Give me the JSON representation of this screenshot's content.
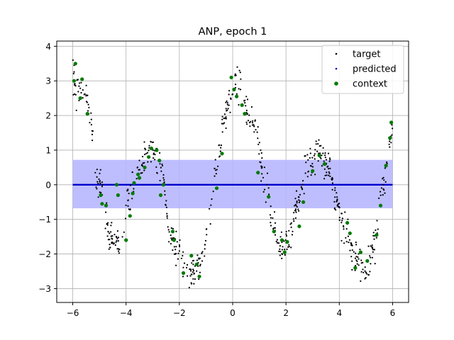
{
  "chart_data": {
    "type": "scatter",
    "title": "ANP, epoch 1",
    "xlabel": "",
    "ylabel": "",
    "xlim": [
      -6.6,
      6.6
    ],
    "ylim": [
      -3.4,
      4.15
    ],
    "xticks": [
      -6,
      -4,
      -2,
      0,
      2,
      4,
      6
    ],
    "xtick_labels": [
      "−6",
      "−4",
      "−2",
      "0",
      "2",
      "4",
      "6"
    ],
    "yticks": [
      -3,
      -2,
      -1,
      0,
      1,
      2,
      3,
      4
    ],
    "ytick_labels": [
      "−3",
      "−2",
      "−1",
      "0",
      "1",
      "2",
      "3",
      "4"
    ],
    "grid": true,
    "legend_position": "top-right",
    "legend": [
      "target",
      "predicted",
      "context"
    ],
    "colors": {
      "target": "#000000",
      "predicted": "#0000cc",
      "context": "#007a00",
      "band": "#b3b3ff",
      "grid": "#b0b0b0"
    },
    "predicted": {
      "mean": 0.0,
      "band": [
        -0.68,
        0.72
      ],
      "x": [
        -6,
        6
      ]
    },
    "target_curve": {
      "x": [
        -6.0,
        -5.5,
        -5.0,
        -4.6,
        -4.2,
        -3.9,
        -3.5,
        -3.0,
        -2.7,
        -2.3,
        -1.9,
        -1.6,
        -1.2,
        -0.9,
        -0.6,
        -0.3,
        0.0,
        0.35,
        0.6,
        0.9,
        1.2,
        1.5,
        1.8,
        2.1,
        2.4,
        2.8,
        3.2,
        3.6,
        3.9,
        4.2,
        4.6,
        5.0,
        5.3,
        5.6,
        6.0
      ],
      "y": [
        3.0,
        2.5,
        0.0,
        -1.6,
        -1.7,
        -0.4,
        0.5,
        1.0,
        0.4,
        -1.6,
        -2.1,
        -2.6,
        -2.3,
        -1.2,
        0.5,
        2.0,
        2.8,
        2.9,
        2.0,
        1.5,
        0.2,
        -1.0,
        -1.8,
        -1.6,
        -0.6,
        0.5,
        0.9,
        0.6,
        -0.5,
        -1.4,
        -2.0,
        -2.6,
        -1.8,
        0.0,
        1.5
      ],
      "count": 700,
      "noise": 0.22
    },
    "context_points": {
      "x": [
        -5.95,
        -5.9,
        -5.72,
        -5.65,
        -5.45,
        -4.95,
        -4.9,
        -4.75,
        -4.35,
        -4.3,
        -4.0,
        -3.85,
        -3.75,
        -3.7,
        -3.55,
        -3.5,
        -3.3,
        -3.15,
        -3.05,
        -2.85,
        -2.75,
        -2.7,
        -2.6,
        -2.25,
        -2.2,
        -1.85,
        -1.55,
        -1.35,
        -1.25,
        -0.6,
        -0.4,
        -0.05,
        0.05,
        0.15,
        0.35,
        0.45,
        0.95,
        1.35,
        1.55,
        1.85,
        1.95,
        2.05,
        2.5,
        2.65,
        3.0,
        3.25,
        3.45,
        4.3,
        4.4,
        4.6,
        4.8,
        5.05,
        5.4,
        5.55,
        5.75,
        5.9,
        5.95
      ],
      "y": [
        3.0,
        3.5,
        2.5,
        3.05,
        2.05,
        -0.3,
        -0.55,
        -0.6,
        0.0,
        -0.3,
        -1.6,
        -0.9,
        -0.25,
        0.05,
        0.3,
        0.2,
        0.5,
        0.8,
        1.05,
        1.0,
        0.7,
        -0.3,
        0.0,
        -1.35,
        -1.6,
        -2.55,
        -2.05,
        -2.3,
        -2.65,
        -0.1,
        0.9,
        3.1,
        2.75,
        2.55,
        2.3,
        2.05,
        0.35,
        -0.35,
        -1.35,
        -1.6,
        -1.95,
        -1.65,
        -1.2,
        -0.5,
        0.4,
        0.85,
        0.6,
        -1.1,
        -1.4,
        -2.4,
        -1.95,
        -2.2,
        -1.45,
        -0.6,
        0.55,
        1.35,
        1.8
      ]
    }
  }
}
